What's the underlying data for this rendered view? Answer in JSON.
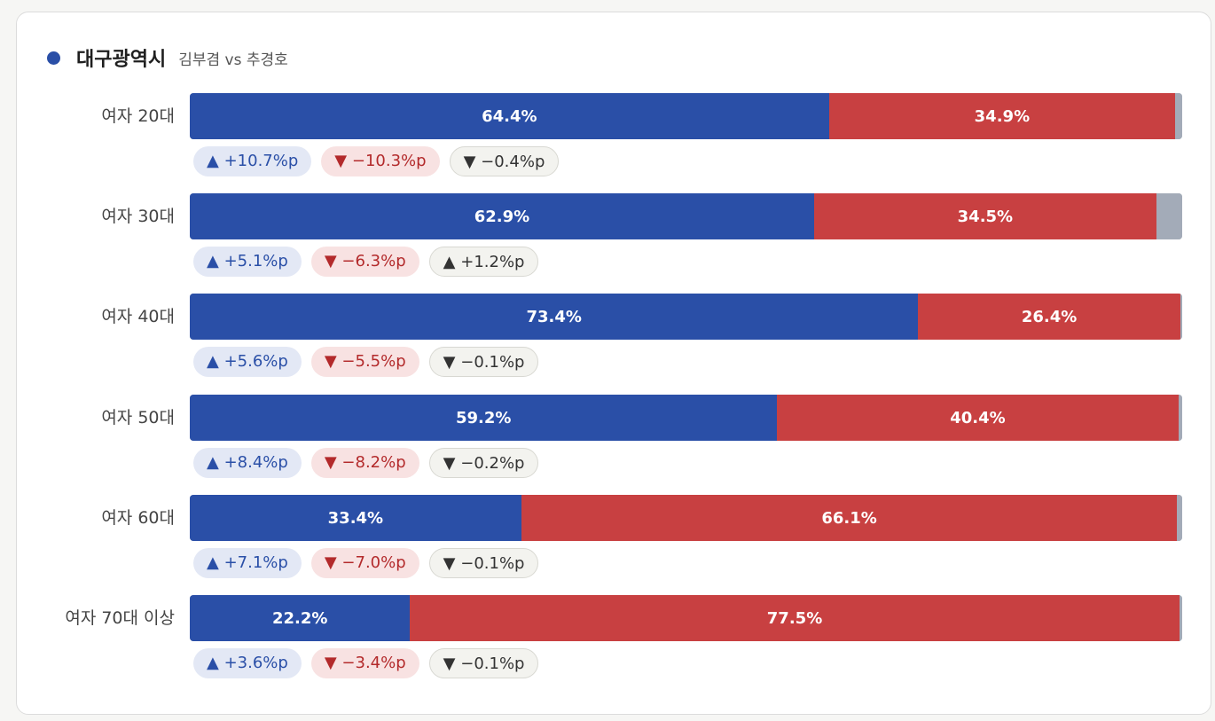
{
  "region": "대구광역시",
  "subtitle": "김부겸 vs 추경호",
  "colors": {
    "candidate_a": "#2a4fa7",
    "candidate_b": "#c84041",
    "other": "#a3abb8",
    "dot": "#2a4fa7"
  },
  "icons": {
    "up": "▲",
    "down": "▼"
  },
  "chart_data": {
    "type": "bar",
    "orientation": "horizontal-stacked",
    "title": "대구광역시",
    "subtitle": "김부겸 vs 추경호",
    "unit": "%",
    "categories": [
      "여자 20대",
      "여자 30대",
      "여자 40대",
      "여자 50대",
      "여자 60대",
      "여자 70대 이상"
    ],
    "series": [
      {
        "values": [
          64.4,
          62.9,
          73.4,
          59.2,
          33.4,
          22.2
        ]
      },
      {
        "values": [
          34.9,
          34.5,
          26.4,
          40.4,
          66.1,
          77.5
        ]
      }
    ],
    "bar_labels": [
      [
        "64.4%",
        "34.9%"
      ],
      [
        "62.9%",
        "34.5%"
      ],
      [
        "73.4%",
        "26.4%"
      ],
      [
        "59.2%",
        "40.4%"
      ],
      [
        "33.4%",
        "66.1%"
      ],
      [
        "22.2%",
        "77.5%"
      ]
    ],
    "changes": [
      [
        10.7,
        -10.3,
        -0.4
      ],
      [
        5.1,
        -6.3,
        1.2
      ],
      [
        5.6,
        -5.5,
        -0.1
      ],
      [
        8.4,
        -8.2,
        -0.2
      ],
      [
        7.1,
        -7.0,
        -0.1
      ],
      [
        3.6,
        -3.4,
        -0.1
      ]
    ],
    "change_labels": [
      [
        "+10.7%p",
        "−10.3%p",
        "−0.4%p"
      ],
      [
        "+5.1%p",
        "−6.3%p",
        "+1.2%p"
      ],
      [
        "+5.6%p",
        "−5.5%p",
        "−0.1%p"
      ],
      [
        "+8.4%p",
        "−8.2%p",
        "−0.2%p"
      ],
      [
        "+7.1%p",
        "−7.0%p",
        "−0.1%p"
      ],
      [
        "+3.6%p",
        "−3.4%p",
        "−0.1%p"
      ]
    ],
    "xlim": [
      0,
      100
    ]
  }
}
